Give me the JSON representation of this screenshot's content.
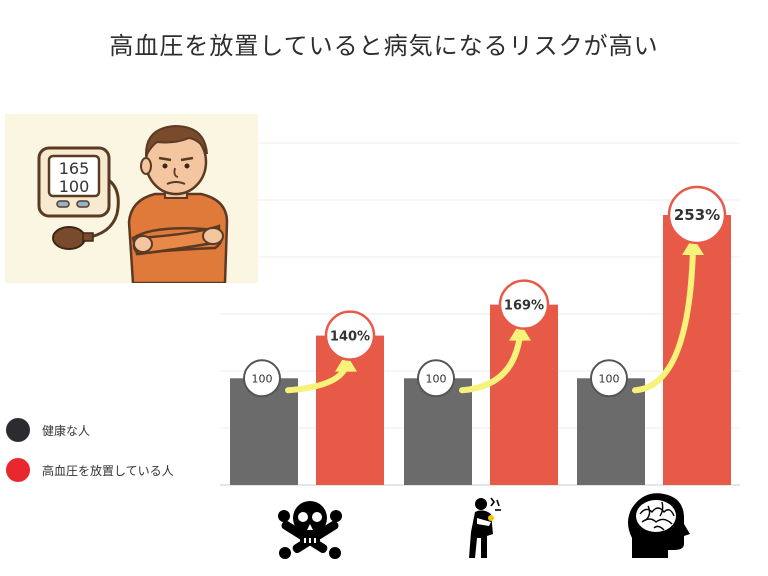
{
  "title": "高血圧を放置していると病気になるリスクが高い",
  "legend": [
    {
      "label": "健康な人",
      "color": "#2b2b30"
    },
    {
      "label": "高血圧を放置している人",
      "color": "#e8272f"
    }
  ],
  "illustration": {
    "monitor_top": "165",
    "monitor_bottom": "100"
  },
  "icons": [
    "skull-crossbones-icon",
    "chest-pain-person-icon",
    "brain-head-icon"
  ],
  "chart_data": {
    "type": "bar",
    "categories": [
      "",
      "",
      ""
    ],
    "series": [
      {
        "values": [
          100,
          100,
          100
        ],
        "labels": [
          "100",
          "100",
          "100"
        ],
        "color": "#6b6b6b"
      },
      {
        "values": [
          140,
          169,
          253
        ],
        "labels": [
          "140%",
          "169%",
          "253%"
        ],
        "color": "#e85a48"
      }
    ],
    "ylim": [
      0,
      300
    ],
    "grid": true
  }
}
